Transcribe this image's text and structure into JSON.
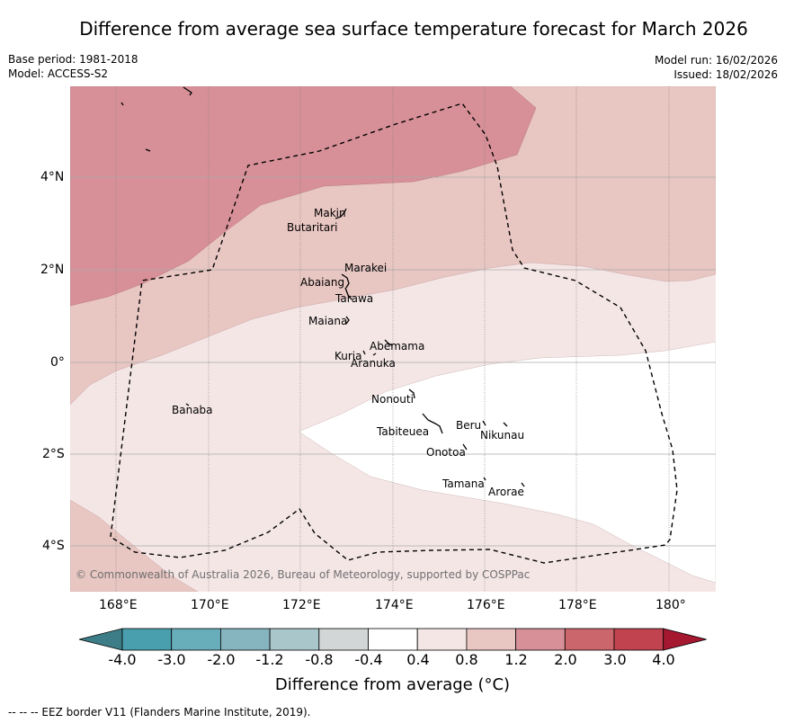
{
  "title": "Difference from average sea surface temperature forecast for March 2026",
  "base_period": "Base period: 1981-2018",
  "model": "Model: ACCESS-S2",
  "model_run": "Model run: 16/02/2026",
  "issued": "Issued: 18/02/2026",
  "copyright": "© Commonwealth of Australia 2026, Bureau of Meteorology, supported by COSPPac",
  "colorbar": {
    "title": "Difference from average (°C)",
    "tick_labels": [
      "-4.0",
      "-3.0",
      "-2.0",
      "-1.2",
      "-0.8",
      "-0.4",
      "0.4",
      "0.8",
      "1.2",
      "2.0",
      "3.0",
      "4.0"
    ],
    "colors": [
      "#3d7d87",
      "#4a9fae",
      "#67adba",
      "#86b5bf",
      "#a9c7cb",
      "#d2d6d6",
      "#ffffff",
      "#f5e6e6",
      "#e8c6c2",
      "#d79097",
      "#cb666c",
      "#c0434f",
      "#a51830"
    ]
  },
  "axes": {
    "lon_labels": [
      "168°E",
      "170°E",
      "172°E",
      "174°E",
      "176°E",
      "178°E",
      "180°"
    ],
    "lat_labels": [
      "4°N",
      "2°N",
      "0°",
      "2°S",
      "4°S"
    ]
  },
  "places": [
    "Makin",
    "Butaritari",
    "Marakei",
    "Abaiang",
    "Tarawa",
    "Maiana",
    "Abemama",
    "Kuria",
    "Aranuka",
    "Banaba",
    "Nonouti",
    "Tabiteuea",
    "Beru",
    "Nikunau",
    "Onotoa",
    "Tamana",
    "Arorae"
  ],
  "footer": "-- -- -- EEZ border V11 (Flanders Marine Institute, 2019)."
}
